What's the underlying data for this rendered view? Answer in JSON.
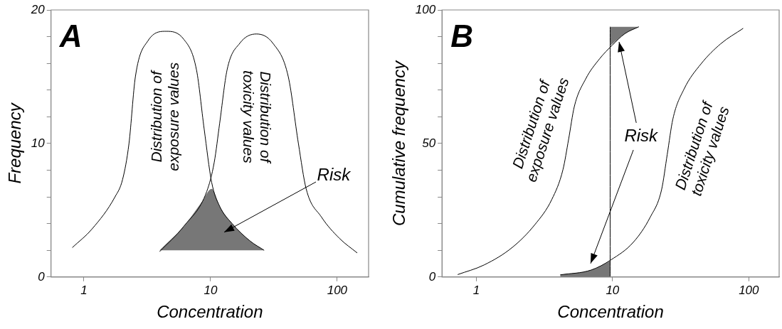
{
  "chart_data": [
    {
      "type": "line",
      "annotations": [
        "A",
        "Risk"
      ],
      "xlabel": "Concentration",
      "ylabel": "Frequency",
      "log": "x",
      "xlim": [
        0.55,
        177
      ],
      "xticks": [
        1,
        10,
        100
      ],
      "ylim": [
        0,
        20
      ],
      "yticks": [
        0,
        {
          "value": 2,
          "label": null
        },
        {
          "value": 4,
          "label": null
        },
        {
          "value": 6,
          "label": null
        },
        {
          "value": 8,
          "label": null
        },
        10,
        {
          "value": 12,
          "label": null
        },
        {
          "value": 14,
          "label": null
        },
        {
          "value": 16,
          "label": null
        },
        {
          "value": 18,
          "label": null
        },
        20
      ],
      "grid": false,
      "legend": false,
      "marker": "none",
      "series": [
        {
          "name": "Distribution of exposure values",
          "color": "#000000",
          "x": [
            0.81,
            1.16,
            1.76,
            2.02,
            2.27,
            2.55,
            3.21,
            4.45,
            6.15,
            7.75,
            8.9,
            10.2,
            11.8,
            14.8,
            20.5,
            26.5
          ],
          "values": [
            2.2,
            3.6,
            6.0,
            7.3,
            10.0,
            15.0,
            17.7,
            18.4,
            17.8,
            15.5,
            11.1,
            7.1,
            5.3,
            4.0,
            2.7,
            2.0
          ]
        },
        {
          "name": "Distribution of toxicity values",
          "color": "#000000",
          "x": [
            3.96,
            6.15,
            9.33,
            10.7,
            11.8,
            13.5,
            17.0,
            23.0,
            31.1,
            41.1,
            49.4,
            56.9,
            75.0,
            104,
            144
          ],
          "values": [
            1.9,
            3.8,
            6.4,
            8.6,
            11.5,
            15.5,
            17.5,
            18.2,
            17.5,
            15.0,
            10.0,
            6.6,
            4.5,
            2.9,
            1.8
          ]
        },
        {
          "color": "#000000",
          "x": [
            3.96,
            6.15,
            8.5,
            10.2,
            11.8,
            14.8,
            20.5,
            26.5
          ],
          "values": [
            null,
            null,
            null,
            null,
            null,
            null,
            null,
            null
          ],
          "upper": [
            2,
            3.8,
            5.6,
            6.6,
            5.3,
            4.0,
            2.7,
            2.0
          ],
          "lower": [
            2,
            2,
            2,
            2,
            2,
            2,
            2,
            2
          ]
        }
      ]
    },
    {
      "type": "line",
      "annotations": [
        "B",
        {
          "text": "Risk",
          "x": 11.2,
          "y": 88
        }
      ],
      "xlabel": "Concentration",
      "ylabel": "Cumulative frequency",
      "log": "x",
      "xlim": [
        0.56,
        167
      ],
      "xticks": [
        1,
        10,
        100
      ],
      "ylim": [
        0,
        100
      ],
      "yticks": [
        0,
        {
          "value": 10,
          "label": null
        },
        {
          "value": 20,
          "label": null
        },
        {
          "value": 30,
          "label": null
        },
        {
          "value": 40,
          "label": null
        },
        50,
        {
          "value": 60,
          "label": null
        },
        {
          "value": 70,
          "label": null
        },
        {
          "value": 80,
          "label": null
        },
        {
          "value": 90,
          "label": null
        },
        100
      ],
      "grid": false,
      "legend": false,
      "marker": "none",
      "series": [
        {
          "name": "Distribution of exposure values",
          "color": "#000000",
          "x": [
            0.73,
            1.14,
            1.84,
            2.69,
            3.58,
            4.33,
            4.76,
            5.24,
            6.34,
            8.03,
            9.95,
            12.3,
            15.6
          ],
          "values": [
            0.9,
            4.5,
            11.1,
            19.6,
            29.0,
            40.3,
            51.6,
            63.8,
            74.1,
            81.7,
            86.8,
            91.1,
            93.7
          ]
        },
        {
          "name": "Distribution of toxicity values",
          "color": "#000000",
          "x": [
            4.13,
            6.96,
            9.72,
            14.2,
            18.9,
            22.9,
            25.2,
            27.7,
            33.5,
            44.6,
            62.1,
            90.9
          ],
          "values": [
            0.8,
            2.6,
            6.4,
            13.0,
            22.4,
            32.7,
            45.9,
            59.1,
            70.4,
            79.8,
            87.3,
            93.1
          ]
        },
        {
          "color": "#000000",
          "x": [
            9.6,
            9.6
          ],
          "values": [
            0,
            93.7
          ]
        },
        {
          "color": "#000000",
          "x": [
            4.13,
            6.96,
            9.6
          ],
          "values": [
            null,
            null,
            null
          ],
          "upper": [
            0.8,
            2.6,
            6.0
          ],
          "lower": [
            0,
            0,
            0
          ]
        },
        {
          "color": "#000000",
          "x": [
            9.6,
            12.3,
            15.6
          ],
          "values": [
            null,
            null,
            null
          ],
          "upper": [
            93.7,
            93.7,
            93.7
          ],
          "lower": [
            86.5,
            91.1,
            93.7
          ]
        }
      ]
    }
  ]
}
